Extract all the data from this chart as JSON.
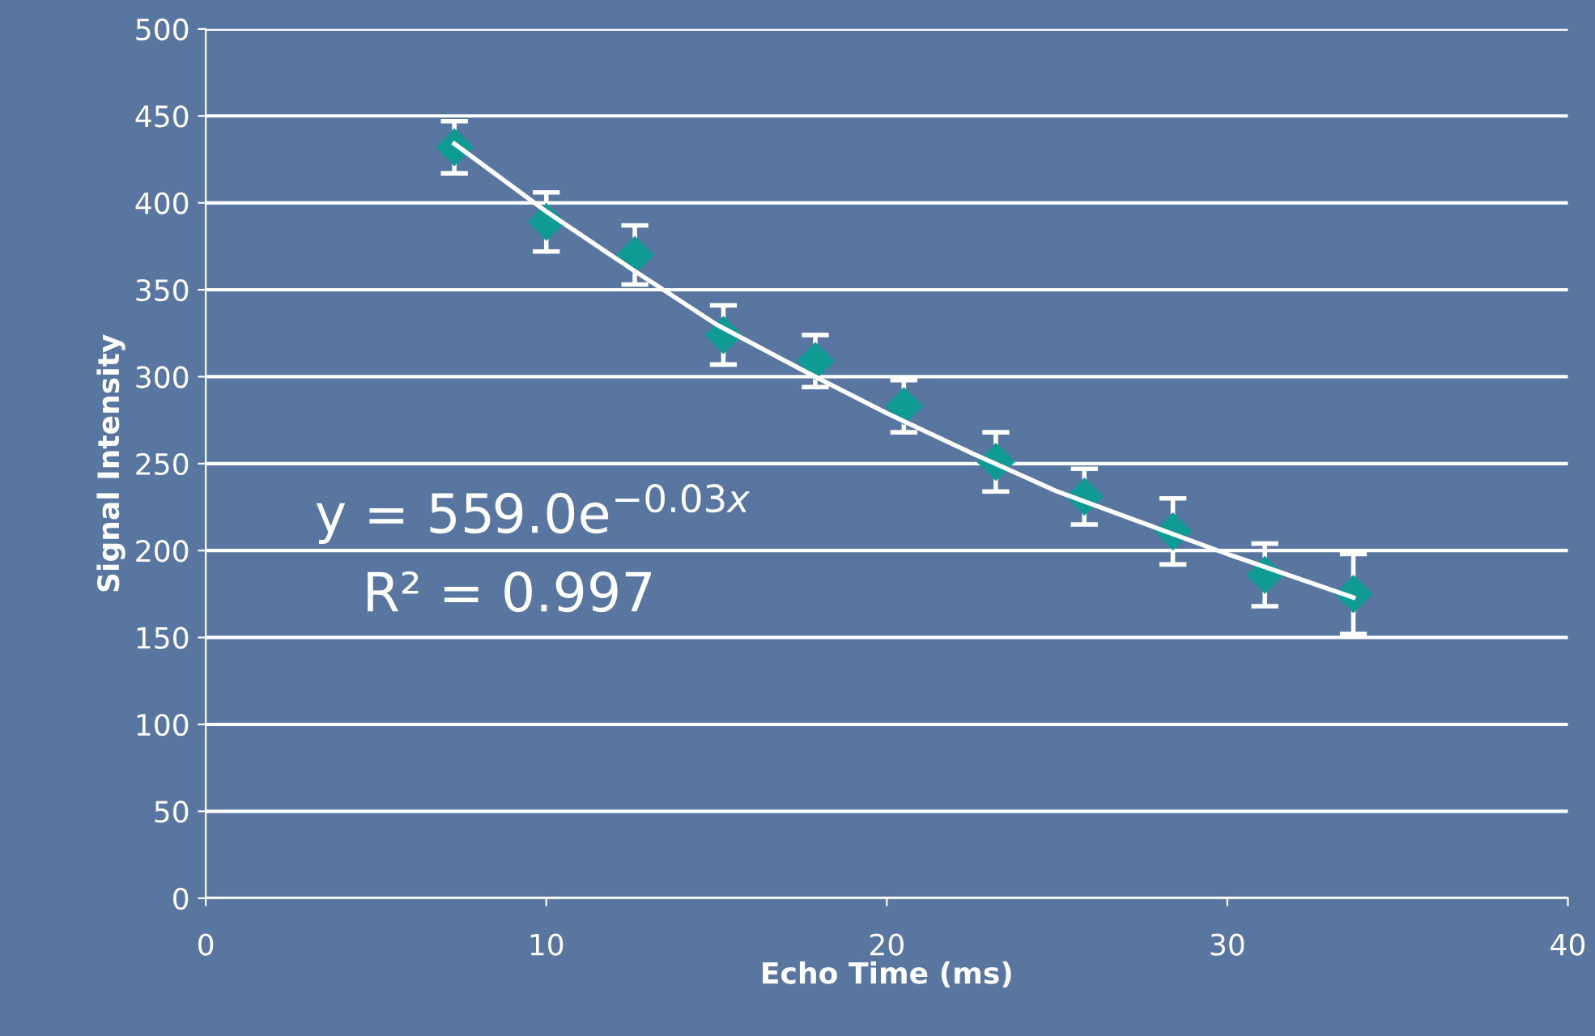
{
  "chart_data": {
    "type": "scatter",
    "xlabel": "Echo Time (ms)",
    "ylabel": "Signal Intensity",
    "xlim": [
      0,
      40
    ],
    "xticks": [
      0,
      10,
      20,
      30,
      40
    ],
    "ylim": [
      0,
      500
    ],
    "yticks": [
      0,
      50,
      100,
      150,
      200,
      250,
      300,
      350,
      400,
      450,
      500
    ],
    "grid": "y",
    "series": [
      {
        "marker": "diamond",
        "color": "#0f9a94",
        "x": [
          7.3,
          10.0,
          12.6,
          15.2,
          17.9,
          20.5,
          23.2,
          25.8,
          28.4,
          31.1,
          33.7
        ],
        "values": [
          432,
          389,
          370,
          324,
          309,
          283,
          251,
          231,
          211,
          186,
          175
        ],
        "errors": [
          15,
          17,
          17,
          17,
          15,
          15,
          17,
          16,
          19,
          18,
          23
        ]
      },
      {
        "type": "line",
        "color": "#ffffff",
        "x": [
          7.3,
          10,
          12.5,
          15,
          17.5,
          20,
          22.5,
          25,
          27.5,
          30,
          33.7
        ],
        "values": [
          434,
          395,
          362,
          330,
          304,
          279,
          256,
          234,
          216,
          198,
          173
        ]
      }
    ],
    "annotations": [
      "y = 559.0e$^{−0.03x}$",
      "R² = 0.997"
    ]
  }
}
